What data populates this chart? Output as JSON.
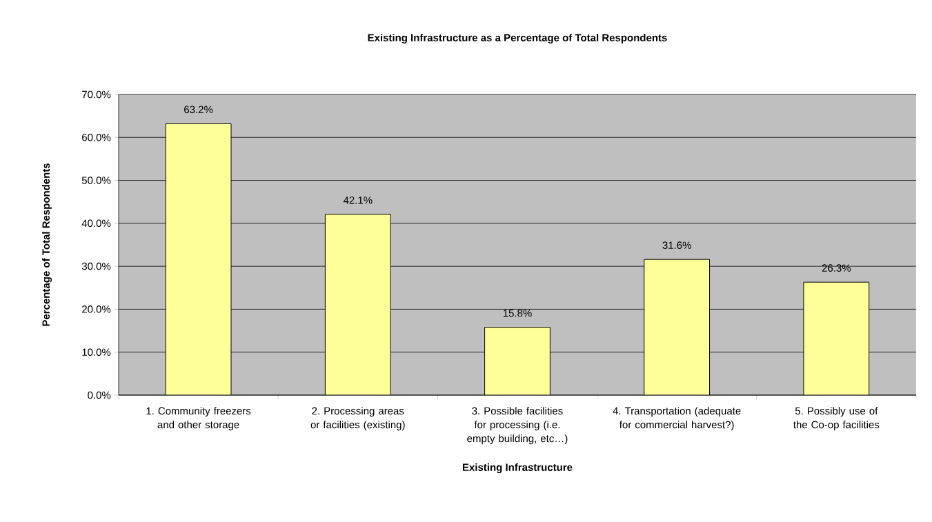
{
  "chart_data": {
    "type": "bar",
    "title": "Existing Infrastructure as a Percentage of Total Respondents",
    "xlabel": "Existing Infrastructure",
    "ylabel": "Percentage of Total Respondents",
    "categories": [
      "1. Community freezers and other storage",
      "2. Processing areas or facilities (existing)",
      "3. Possible facilities for processing (i.e. empty building, etc…)",
      "4. Transportation (adequate for commercial harvest?)",
      "5. Possibly use of the Co-op facilities"
    ],
    "values": [
      63.2,
      42.1,
      15.8,
      31.6,
      26.3
    ],
    "value_labels": [
      "63.2%",
      "42.1%",
      "15.8%",
      "31.6%",
      "26.3%"
    ],
    "color": "#ffff99",
    "ylim": [
      0,
      70
    ],
    "yticks": [
      {
        "value": 0,
        "label": "0.0%"
      },
      {
        "value": 10,
        "label": "10.0%"
      },
      {
        "value": 20,
        "label": "20.0%"
      },
      {
        "value": 30,
        "label": "30.0%"
      },
      {
        "value": 40,
        "label": "40.0%"
      },
      {
        "value": 50,
        "label": "50.0%"
      },
      {
        "value": 60,
        "label": "60.0%"
      },
      {
        "value": 70,
        "label": "70.0%"
      }
    ],
    "grid": "y"
  }
}
